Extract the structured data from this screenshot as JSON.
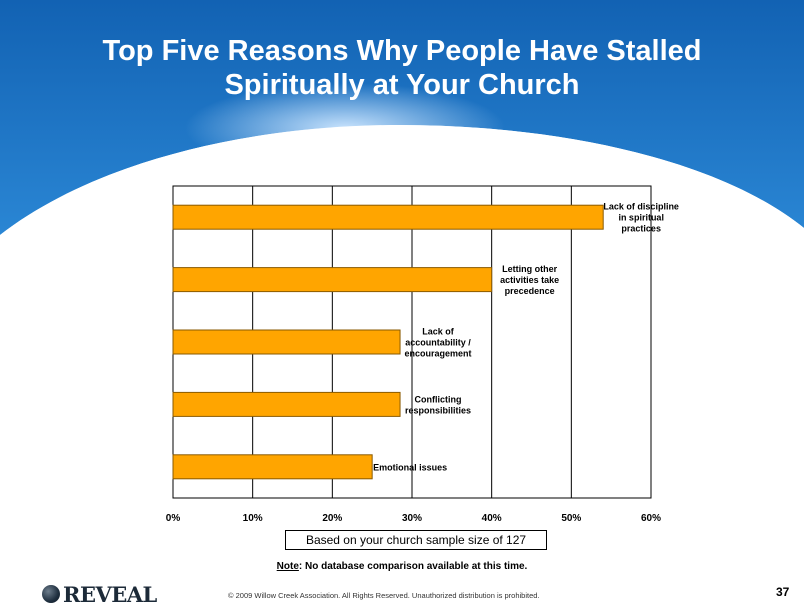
{
  "header": {
    "title_line1": "Top Five Reasons Why People Have Stalled",
    "title_line2": "Spiritually at Your Church",
    "colors": {
      "top": "#1262b3",
      "bottom": "#2a86d4",
      "glow": "#cfe7ff"
    }
  },
  "chart_data": {
    "type": "bar",
    "orientation": "horizontal",
    "categories": [
      "Lack of discipline in spiritual practices",
      "Letting other activities take precedence",
      "Lack of accountability / encouragement",
      "Conflicting responsibilities",
      "Emotional issues"
    ],
    "label_lines": [
      [
        "Lack of discipline",
        "in spiritual",
        "practices"
      ],
      [
        "Letting other",
        "activities take",
        "precedence"
      ],
      [
        "Lack of",
        "accountability /",
        "encouragement"
      ],
      [
        "Conflicting",
        "responsibilities"
      ],
      [
        "Emotional issues"
      ]
    ],
    "values": [
      54,
      40,
      28.5,
      28.5,
      25
    ],
    "xlim": [
      0,
      60
    ],
    "ticks": [
      0,
      10,
      20,
      30,
      40,
      50,
      60
    ],
    "tick_labels": [
      "0%",
      "10%",
      "20%",
      "30%",
      "40%",
      "50%",
      "60%"
    ],
    "grid": true,
    "bar_color": "#ffa500",
    "bar_border": "#8a5a00"
  },
  "sample_note": "Based on your church sample size of 127",
  "note": {
    "label": "Note",
    "text": ": No database comparison available at this time."
  },
  "footer": {
    "logo_text": "REVEAL",
    "copyright": "© 2009 Willow Creek Association.  All Rights Reserved.  Unauthorized distribution is prohibited.",
    "page_number": "37"
  }
}
